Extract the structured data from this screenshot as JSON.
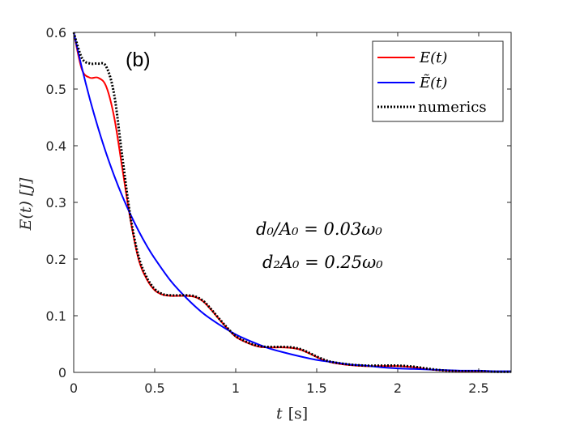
{
  "chart_data": {
    "type": "line",
    "panel_label": "(b)",
    "xlabel_var": "t",
    "xlabel_unit": "[s]",
    "ylabel": "E(t)  [J]",
    "xlim": [
      0,
      2.7
    ],
    "ylim": [
      0,
      0.6
    ],
    "xticks": [
      0,
      0.5,
      1,
      1.5,
      2,
      2.5
    ],
    "xtick_labels": [
      "0",
      "0.5",
      "1",
      "1.5",
      "2",
      "2.5"
    ],
    "yticks": [
      0,
      0.1,
      0.2,
      0.3,
      0.4,
      0.5,
      0.6
    ],
    "ytick_labels": [
      "0",
      "0.1",
      "0.2",
      "0.3",
      "0.4",
      "0.5",
      "0.6"
    ],
    "annotations": [
      "d₀/A₀ = 0.03ω₀",
      "d₂A₀ = 0.25ω₀"
    ],
    "legend_position": "top-right",
    "series": [
      {
        "name": "E(t)",
        "color": "#ff0000",
        "style": "solid",
        "x": [
          0,
          0.05,
          0.1,
          0.15,
          0.2,
          0.25,
          0.3,
          0.35,
          0.4,
          0.45,
          0.5,
          0.55,
          0.6,
          0.65,
          0.7,
          0.75,
          0.8,
          0.85,
          0.9,
          0.95,
          1.0,
          1.05,
          1.1,
          1.15,
          1.2,
          1.25,
          1.3,
          1.35,
          1.4,
          1.45,
          1.5,
          1.55,
          1.6,
          1.7,
          1.8,
          1.9,
          2.0,
          2.1,
          2.2,
          2.3,
          2.4,
          2.5,
          2.6,
          2.7
        ],
        "y": [
          0.6,
          0.535,
          0.52,
          0.52,
          0.505,
          0.45,
          0.36,
          0.27,
          0.2,
          0.165,
          0.145,
          0.137,
          0.135,
          0.135,
          0.135,
          0.133,
          0.125,
          0.11,
          0.093,
          0.077,
          0.063,
          0.055,
          0.049,
          0.045,
          0.044,
          0.044,
          0.044,
          0.043,
          0.04,
          0.034,
          0.027,
          0.021,
          0.017,
          0.013,
          0.011,
          0.011,
          0.011,
          0.009,
          0.005,
          0.003,
          0.002,
          0.002,
          0.001,
          0.001
        ]
      },
      {
        "name": "Ẽ(t)",
        "color": "#0000ff",
        "style": "solid",
        "x": [
          0,
          0.05,
          0.1,
          0.15,
          0.2,
          0.25,
          0.3,
          0.35,
          0.4,
          0.45,
          0.5,
          0.6,
          0.7,
          0.8,
          0.9,
          1.0,
          1.1,
          1.2,
          1.3,
          1.4,
          1.5,
          1.6,
          1.7,
          1.8,
          1.9,
          2.0,
          2.1,
          2.2,
          2.3,
          2.4,
          2.5,
          2.6,
          2.7
        ],
        "y": [
          0.6,
          0.538,
          0.482,
          0.432,
          0.387,
          0.347,
          0.311,
          0.279,
          0.25,
          0.224,
          0.201,
          0.161,
          0.13,
          0.104,
          0.084,
          0.067,
          0.054,
          0.043,
          0.035,
          0.028,
          0.022,
          0.018,
          0.014,
          0.012,
          0.009,
          0.007,
          0.006,
          0.005,
          0.004,
          0.003,
          0.003,
          0.002,
          0.002
        ]
      },
      {
        "name": "numerics",
        "color": "#000000",
        "style": "dotted",
        "x": [
          0,
          0.05,
          0.1,
          0.15,
          0.2,
          0.25,
          0.3,
          0.35,
          0.4,
          0.45,
          0.5,
          0.55,
          0.6,
          0.65,
          0.7,
          0.75,
          0.8,
          0.85,
          0.9,
          0.95,
          1.0,
          1.05,
          1.1,
          1.15,
          1.2,
          1.25,
          1.3,
          1.35,
          1.4,
          1.45,
          1.5,
          1.55,
          1.6,
          1.7,
          1.8,
          1.9,
          2.0,
          2.1,
          2.2,
          2.3,
          2.4,
          2.5,
          2.6,
          2.7
        ],
        "y": [
          0.6,
          0.555,
          0.545,
          0.545,
          0.54,
          0.49,
          0.38,
          0.275,
          0.205,
          0.168,
          0.147,
          0.138,
          0.136,
          0.136,
          0.136,
          0.134,
          0.126,
          0.111,
          0.094,
          0.078,
          0.064,
          0.056,
          0.05,
          0.046,
          0.045,
          0.045,
          0.045,
          0.044,
          0.041,
          0.035,
          0.028,
          0.022,
          0.018,
          0.014,
          0.012,
          0.012,
          0.012,
          0.01,
          0.006,
          0.003,
          0.002,
          0.002,
          0.001,
          0.001
        ]
      }
    ]
  }
}
